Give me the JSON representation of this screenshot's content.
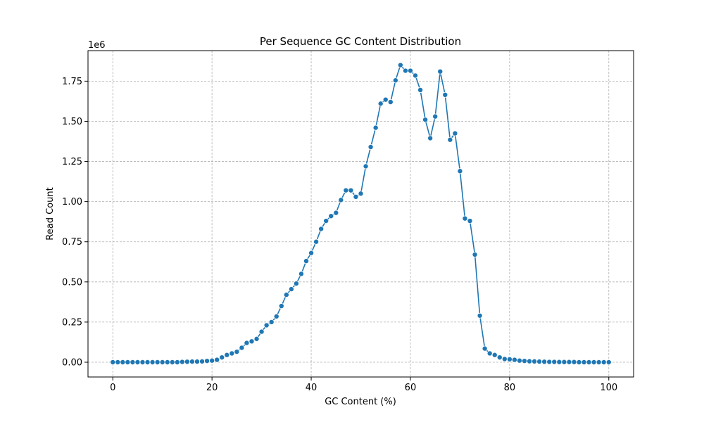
{
  "chart_data": {
    "type": "line",
    "title": "Per Sequence GC Content Distribution",
    "xlabel": "GC Content (%)",
    "ylabel": "Read Count",
    "y_scale_label": "1e6",
    "xlim": [
      -5,
      105
    ],
    "ylim": [
      -0.092,
      1.94
    ],
    "x_ticks": [
      0,
      20,
      40,
      60,
      80,
      100
    ],
    "x_tick_labels": [
      "0",
      "20",
      "40",
      "60",
      "80",
      "100"
    ],
    "y_ticks": [
      0,
      0.25,
      0.5,
      0.75,
      1.0,
      1.25,
      1.5,
      1.75
    ],
    "y_tick_labels": [
      "0.00",
      "0.25",
      "0.50",
      "0.75",
      "1.00",
      "1.25",
      "1.50",
      "1.75"
    ],
    "grid": true,
    "line_color": "#1f77b4",
    "marker": "circle",
    "series": [
      {
        "x": [
          0,
          1,
          2,
          3,
          4,
          5,
          6,
          7,
          8,
          9,
          10,
          11,
          12,
          13,
          14,
          15,
          16,
          17,
          18,
          19,
          20,
          21,
          22,
          23,
          24,
          25,
          26,
          27,
          28,
          29,
          30,
          31,
          32,
          33,
          34,
          35,
          36,
          37,
          38,
          39,
          40,
          41,
          42,
          43,
          44,
          45,
          46,
          47,
          48,
          49,
          50,
          51,
          52,
          53,
          54,
          55,
          56,
          57,
          58,
          59,
          60,
          61,
          62,
          63,
          64,
          65,
          66,
          67,
          68,
          69,
          70,
          71,
          72,
          73,
          74,
          75,
          76,
          77,
          78,
          79,
          80,
          81,
          82,
          83,
          84,
          85,
          86,
          87,
          88,
          89,
          90,
          91,
          92,
          93,
          94,
          95,
          96,
          97,
          98,
          99,
          100
        ],
        "values": [
          0,
          0,
          0,
          0,
          0,
          0,
          0,
          0,
          0,
          0,
          0,
          0,
          0,
          0,
          0.002,
          0.003,
          0.004,
          0.004,
          0.005,
          0.008,
          0.01,
          0.015,
          0.03,
          0.045,
          0.055,
          0.065,
          0.09,
          0.12,
          0.13,
          0.145,
          0.19,
          0.23,
          0.25,
          0.285,
          0.35,
          0.42,
          0.455,
          0.49,
          0.55,
          0.63,
          0.68,
          0.75,
          0.83,
          0.88,
          0.91,
          0.93,
          1.01,
          1.07,
          1.07,
          1.03,
          1.05,
          1.22,
          1.34,
          1.46,
          1.61,
          1.635,
          1.62,
          1.755,
          1.85,
          1.815,
          1.815,
          1.785,
          1.695,
          1.51,
          1.395,
          1.53,
          1.81,
          1.665,
          1.385,
          1.425,
          1.19,
          0.895,
          0.88,
          0.67,
          0.29,
          0.085,
          0.055,
          0.045,
          0.03,
          0.02,
          0.018,
          0.015,
          0.01,
          0.008,
          0.006,
          0.005,
          0.004,
          0.003,
          0.002,
          0.002,
          0.001,
          0.001,
          0.001,
          0.001,
          0,
          0,
          0,
          0,
          0,
          0,
          0
        ]
      }
    ]
  }
}
